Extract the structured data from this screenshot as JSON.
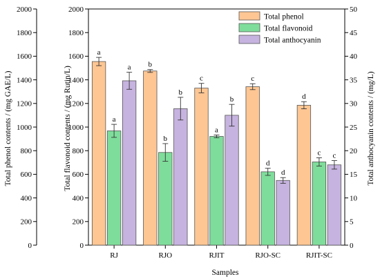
{
  "chart_data": {
    "type": "bar",
    "xlabel": "Samples",
    "categories": [
      "RJ",
      "RJO",
      "RJIT",
      "RJO-SC",
      "RJIT-SC"
    ],
    "axes": {
      "outer_left": {
        "label": "Total phenol contents / (mg GAE/L)",
        "range": [
          0,
          2000
        ],
        "ticks": [
          "0",
          "200",
          "400",
          "600",
          "800",
          "1000",
          "1200",
          "1400",
          "1600",
          "1800",
          "2000"
        ]
      },
      "inner_left": {
        "label": "Total flavonoid contents / (mg Rutin/L)",
        "range": [
          0,
          2000
        ],
        "ticks": [
          "0",
          "200",
          "400",
          "600",
          "800",
          "1000",
          "1200",
          "1400",
          "1600",
          "1800",
          "2000"
        ]
      },
      "right": {
        "label": "Total anthocyanin contents / (mg/L)",
        "range": [
          0,
          50
        ],
        "ticks": [
          "0",
          "5",
          "10",
          "15",
          "20",
          "25",
          "30",
          "35",
          "40",
          "45",
          "50"
        ]
      }
    },
    "series": [
      {
        "name": "Total phenol",
        "axis": "left",
        "color": "#FDC693",
        "values": [
          1555,
          1475,
          1330,
          1342,
          1185
        ],
        "errors": [
          35,
          12,
          40,
          25,
          30
        ],
        "labels": [
          "a",
          "b",
          "c",
          "c",
          "d"
        ]
      },
      {
        "name": "Total flavonoid",
        "axis": "left",
        "color": "#7FDD9B",
        "values": [
          968,
          785,
          921,
          621,
          705
        ],
        "errors": [
          55,
          75,
          12,
          30,
          35
        ],
        "labels": [
          "a",
          "b",
          "a",
          "d",
          "c"
        ]
      },
      {
        "name": "Total anthocyanin",
        "axis": "right",
        "color": "#C6B3DF",
        "values": [
          34.8,
          28.9,
          27.5,
          13.7,
          17.0
        ],
        "errors": [
          1.8,
          2.4,
          2.3,
          0.6,
          0.9
        ],
        "labels": [
          "a",
          "b",
          "b",
          "d",
          "c"
        ]
      }
    ],
    "legend": "top-right"
  }
}
